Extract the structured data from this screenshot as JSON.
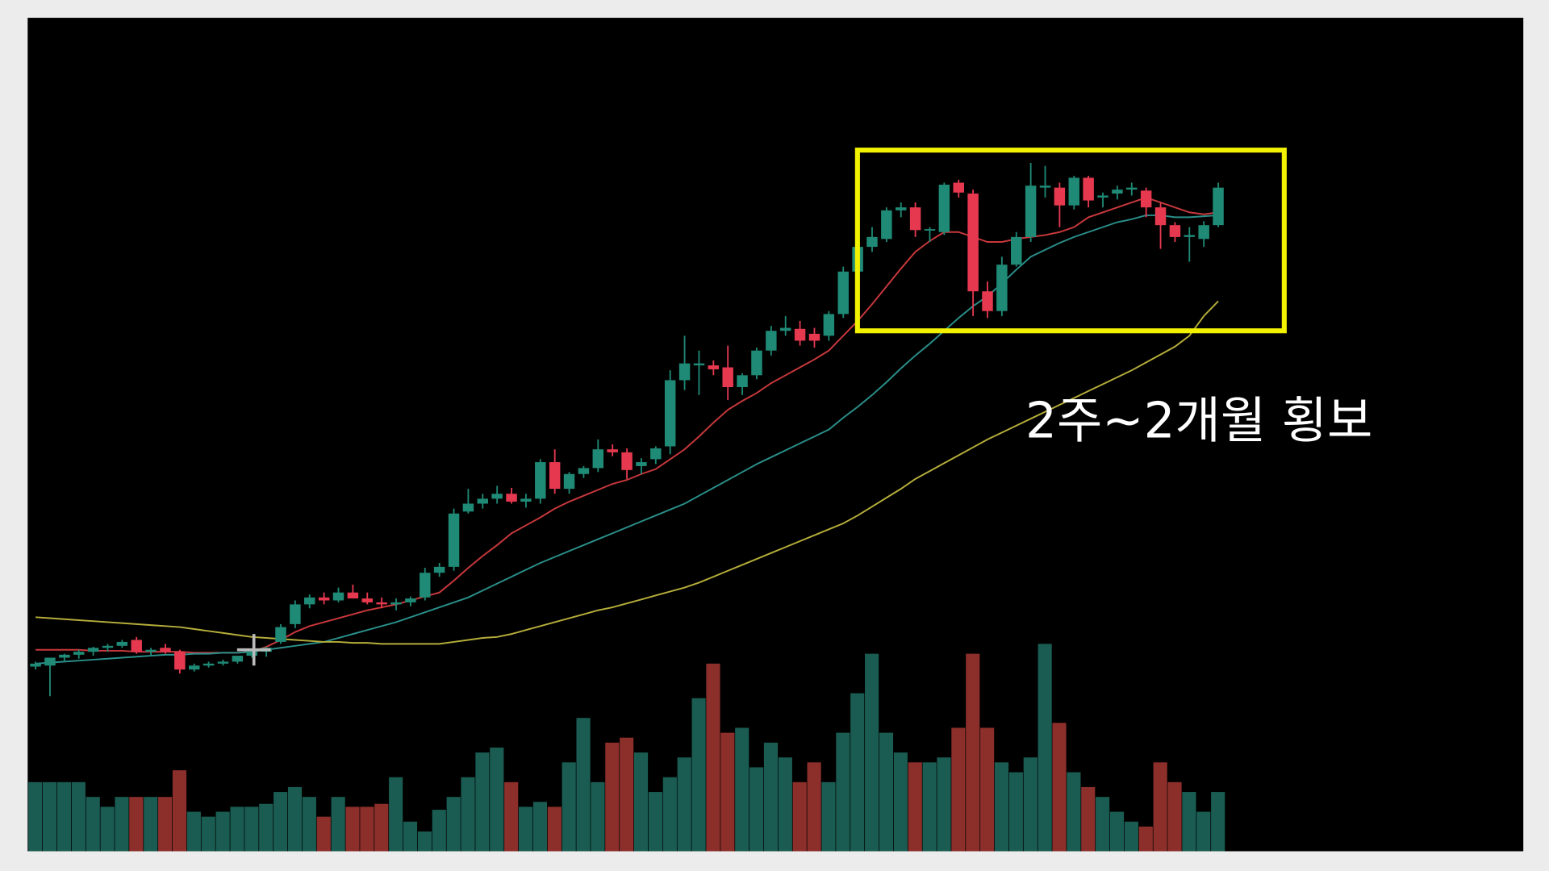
{
  "chart_data": {
    "type": "candlestick",
    "annotation": "2주~2개월 횡보",
    "up_color": "#1f8a76",
    "down_color": "#e63950",
    "volume_up_color": "#1a5c52",
    "volume_down_color": "#8c2f2b",
    "ylim": [
      -20,
      682
    ],
    "y2lim": [
      0,
      240
    ],
    "candles": [
      {
        "open": 25,
        "high": 30,
        "low": 22,
        "close": 28
      },
      {
        "open": 26,
        "high": 30,
        "low": -5,
        "close": 34
      },
      {
        "open": 34,
        "high": 38,
        "low": 30,
        "close": 37
      },
      {
        "open": 37,
        "high": 42,
        "low": 33,
        "close": 40
      },
      {
        "open": 40,
        "high": 45,
        "low": 36,
        "close": 44
      },
      {
        "open": 44,
        "high": 48,
        "low": 40,
        "close": 46
      },
      {
        "open": 46,
        "high": 52,
        "low": 44,
        "close": 50
      },
      {
        "open": 52,
        "high": 55,
        "low": 38,
        "close": 40
      },
      {
        "open": 40,
        "high": 44,
        "low": 36,
        "close": 42
      },
      {
        "open": 44,
        "high": 48,
        "low": 38,
        "close": 40
      },
      {
        "open": 40,
        "high": 42,
        "low": 18,
        "close": 22
      },
      {
        "open": 22,
        "high": 28,
        "low": 20,
        "close": 26
      },
      {
        "open": 26,
        "high": 30,
        "low": 24,
        "close": 28
      },
      {
        "open": 28,
        "high": 32,
        "low": 26,
        "close": 30
      },
      {
        "open": 30,
        "high": 34,
        "low": 28,
        "close": 36
      },
      {
        "open": 36,
        "high": 40,
        "low": 34,
        "close": 42
      },
      {
        "open": 40,
        "high": 45,
        "low": 35,
        "close": 44
      },
      {
        "open": 50,
        "high": 68,
        "low": 48,
        "close": 65
      },
      {
        "open": 68,
        "high": 92,
        "low": 64,
        "close": 88
      },
      {
        "open": 88,
        "high": 98,
        "low": 84,
        "close": 95
      },
      {
        "open": 95,
        "high": 100,
        "low": 88,
        "close": 92
      },
      {
        "open": 92,
        "high": 105,
        "low": 90,
        "close": 100
      },
      {
        "open": 100,
        "high": 108,
        "low": 94,
        "close": 94
      },
      {
        "open": 94,
        "high": 100,
        "low": 88,
        "close": 90
      },
      {
        "open": 90,
        "high": 95,
        "low": 84,
        "close": 88
      },
      {
        "open": 88,
        "high": 94,
        "low": 82,
        "close": 90
      },
      {
        "open": 90,
        "high": 96,
        "low": 86,
        "close": 94
      },
      {
        "open": 95,
        "high": 125,
        "low": 92,
        "close": 120
      },
      {
        "open": 120,
        "high": 130,
        "low": 116,
        "close": 126
      },
      {
        "open": 126,
        "high": 185,
        "low": 122,
        "close": 180
      },
      {
        "open": 182,
        "high": 205,
        "low": 180,
        "close": 190
      },
      {
        "open": 190,
        "high": 200,
        "low": 185,
        "close": 195
      },
      {
        "open": 195,
        "high": 208,
        "low": 190,
        "close": 200
      },
      {
        "open": 200,
        "high": 206,
        "low": 190,
        "close": 192
      },
      {
        "open": 192,
        "high": 200,
        "low": 186,
        "close": 195
      },
      {
        "open": 195,
        "high": 235,
        "low": 190,
        "close": 232
      },
      {
        "open": 232,
        "high": 245,
        "low": 200,
        "close": 205
      },
      {
        "open": 205,
        "high": 222,
        "low": 200,
        "close": 220
      },
      {
        "open": 220,
        "high": 228,
        "low": 216,
        "close": 226
      },
      {
        "open": 226,
        "high": 255,
        "low": 222,
        "close": 245
      },
      {
        "open": 245,
        "high": 250,
        "low": 238,
        "close": 242
      },
      {
        "open": 242,
        "high": 246,
        "low": 215,
        "close": 224
      },
      {
        "open": 228,
        "high": 236,
        "low": 220,
        "close": 232
      },
      {
        "open": 235,
        "high": 248,
        "low": 230,
        "close": 246
      },
      {
        "open": 248,
        "high": 325,
        "low": 240,
        "close": 315
      },
      {
        "open": 315,
        "high": 360,
        "low": 305,
        "close": 332
      },
      {
        "open": 330,
        "high": 345,
        "low": 300,
        "close": 332
      },
      {
        "open": 330,
        "high": 335,
        "low": 320,
        "close": 326
      },
      {
        "open": 328,
        "high": 350,
        "low": 295,
        "close": 308
      },
      {
        "open": 308,
        "high": 322,
        "low": 300,
        "close": 320
      },
      {
        "open": 320,
        "high": 348,
        "low": 316,
        "close": 345
      },
      {
        "open": 345,
        "high": 370,
        "low": 340,
        "close": 365
      },
      {
        "open": 365,
        "high": 380,
        "low": 360,
        "close": 368
      },
      {
        "open": 367,
        "high": 375,
        "low": 350,
        "close": 355
      },
      {
        "open": 362,
        "high": 368,
        "low": 348,
        "close": 355
      },
      {
        "open": 360,
        "high": 385,
        "low": 355,
        "close": 382
      },
      {
        "open": 382,
        "high": 430,
        "low": 378,
        "close": 425
      },
      {
        "open": 425,
        "high": 455,
        "low": 420,
        "close": 450
      },
      {
        "open": 450,
        "high": 470,
        "low": 445,
        "close": 460
      },
      {
        "open": 458,
        "high": 490,
        "low": 455,
        "close": 487
      },
      {
        "open": 487,
        "high": 495,
        "low": 480,
        "close": 490
      },
      {
        "open": 490,
        "high": 495,
        "low": 460,
        "close": 467
      },
      {
        "open": 467,
        "high": 470,
        "low": 455,
        "close": 468
      },
      {
        "open": 465,
        "high": 515,
        "low": 462,
        "close": 513
      },
      {
        "open": 515,
        "high": 518,
        "low": 500,
        "close": 505
      },
      {
        "open": 504,
        "high": 508,
        "low": 380,
        "close": 405
      },
      {
        "open": 405,
        "high": 415,
        "low": 378,
        "close": 385
      },
      {
        "open": 385,
        "high": 440,
        "low": 380,
        "close": 432
      },
      {
        "open": 432,
        "high": 465,
        "low": 430,
        "close": 460
      },
      {
        "open": 460,
        "high": 535,
        "low": 455,
        "close": 512
      },
      {
        "open": 510,
        "high": 532,
        "low": 500,
        "close": 512
      },
      {
        "open": 510,
        "high": 515,
        "low": 470,
        "close": 492
      },
      {
        "open": 492,
        "high": 522,
        "low": 488,
        "close": 520
      },
      {
        "open": 520,
        "high": 522,
        "low": 490,
        "close": 497
      },
      {
        "open": 500,
        "high": 505,
        "low": 490,
        "close": 502
      },
      {
        "open": 504,
        "high": 512,
        "low": 498,
        "close": 508
      },
      {
        "open": 508,
        "high": 515,
        "low": 502,
        "close": 510
      },
      {
        "open": 507,
        "high": 510,
        "low": 480,
        "close": 490
      },
      {
        "open": 490,
        "high": 495,
        "low": 448,
        "close": 472
      },
      {
        "open": 472,
        "high": 475,
        "low": 455,
        "close": 460
      },
      {
        "open": 460,
        "high": 470,
        "low": 435,
        "close": 462
      },
      {
        "open": 458,
        "high": 476,
        "low": 450,
        "close": 472
      },
      {
        "open": 472,
        "high": 515,
        "low": 470,
        "close": 510
      }
    ],
    "volume": [
      70,
      70,
      70,
      70,
      55,
      45,
      55,
      55,
      55,
      55,
      82,
      40,
      35,
      40,
      45,
      45,
      48,
      60,
      65,
      55,
      35,
      55,
      45,
      45,
      48,
      75,
      30,
      20,
      42,
      55,
      75,
      100,
      105,
      70,
      45,
      50,
      45,
      90,
      135,
      70,
      110,
      115,
      100,
      60,
      75,
      95,
      155,
      190,
      120,
      125,
      85,
      110,
      95,
      70,
      90,
      70,
      120,
      160,
      200,
      120,
      100,
      90,
      90,
      95,
      125,
      200,
      125,
      90,
      80,
      95,
      210,
      130,
      80,
      65,
      55,
      40,
      30,
      25,
      90,
      70,
      60,
      40,
      60
    ],
    "series": [
      {
        "color": "#c8383c",
        "values": [
          42,
          42,
          42,
          42,
          41,
          41,
          41,
          40,
          40,
          40,
          40,
          39,
          39,
          39,
          39,
          40,
          45,
          52,
          60,
          66,
          70,
          74,
          78,
          82,
          85,
          88,
          92,
          96,
          100,
          112,
          125,
          137,
          148,
          160,
          168,
          176,
          185,
          192,
          198,
          204,
          210,
          214,
          220,
          225,
          235,
          245,
          258,
          272,
          285,
          294,
          302,
          312,
          320,
          328,
          336,
          345,
          360,
          375,
          392,
          410,
          428,
          445,
          456,
          465,
          465,
          460,
          455,
          455,
          458,
          460,
          462,
          465,
          470,
          480,
          485,
          490,
          495,
          500,
          495,
          490,
          485,
          483,
          485
        ]
      },
      {
        "color": "#2a8f8a",
        "values": [
          28,
          29,
          30,
          31,
          32,
          33,
          34,
          35,
          36,
          37,
          37,
          38,
          38,
          39,
          39,
          40,
          42,
          44,
          46,
          48,
          50,
          54,
          58,
          62,
          66,
          70,
          75,
          80,
          85,
          90,
          95,
          102,
          109,
          116,
          123,
          130,
          136,
          142,
          148,
          154,
          160,
          166,
          172,
          178,
          184,
          190,
          198,
          206,
          214,
          222,
          230,
          237,
          244,
          251,
          258,
          265,
          277,
          288,
          300,
          313,
          327,
          340,
          352,
          365,
          378,
          390,
          400,
          413,
          427,
          440,
          447,
          454,
          460,
          465,
          470,
          475,
          478,
          482,
          482,
          480,
          480,
          481,
          482
        ]
      },
      {
        "color": "#b5ad3a",
        "values": [
          75,
          74,
          73,
          72,
          71,
          70,
          69,
          68,
          67,
          66,
          65,
          63,
          61,
          59,
          57,
          55,
          54,
          53,
          52,
          51,
          50,
          50,
          49,
          49,
          48,
          48,
          48,
          48,
          48,
          50,
          52,
          54,
          55,
          58,
          62,
          66,
          70,
          74,
          78,
          82,
          85,
          89,
          93,
          97,
          101,
          105,
          110,
          116,
          122,
          128,
          134,
          140,
          146,
          152,
          158,
          164,
          170,
          178,
          187,
          196,
          205,
          215,
          223,
          231,
          239,
          247,
          255,
          262,
          269,
          276,
          283,
          290,
          297,
          304,
          311,
          318,
          325,
          333,
          341,
          349,
          360,
          380,
          395
        ]
      }
    ]
  }
}
